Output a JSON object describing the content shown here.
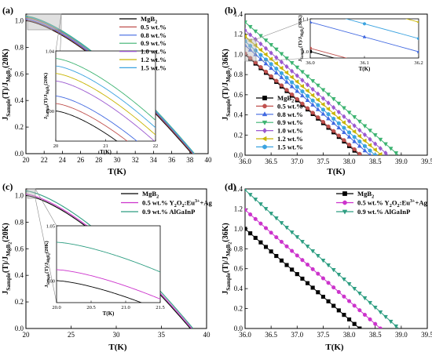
{
  "chart_data": [
    {
      "panel": "(a)",
      "type": "line",
      "xlabel": "T(K)",
      "ylabel": "J_Sample(T)/J_MgB2(20K)",
      "xlim": [
        20,
        40
      ],
      "ylim": [
        0,
        1.05
      ],
      "xticks": [
        20,
        22,
        24,
        26,
        28,
        30,
        32,
        34,
        36,
        38,
        40
      ],
      "yticks": [
        0.0,
        0.2,
        0.4,
        0.6,
        0.8,
        1.0
      ],
      "legend": "top-right",
      "series": [
        {
          "name": "MgB2",
          "color": "#000000",
          "Tc": 38.2,
          "y0": 1.0
        },
        {
          "name": "0.5 wt.%",
          "color": "#c0504d",
          "Tc": 38.3,
          "y0": 1.005
        },
        {
          "name": "0.8 wt.%",
          "color": "#4169e1",
          "Tc": 38.4,
          "y0": 1.01
        },
        {
          "name": "0.9 wt.%",
          "color": "#3cb371",
          "Tc": 38.5,
          "y0": 1.035
        },
        {
          "name": "1.0 wt.%",
          "color": "#9b59d0",
          "Tc": 38.45,
          "y0": 1.02
        },
        {
          "name": "1.2 wt.%",
          "color": "#c8b400",
          "Tc": 38.45,
          "y0": 1.025
        },
        {
          "name": "1.5 wt.%",
          "color": "#3ba3e0",
          "Tc": 38.45,
          "y0": 1.03
        }
      ],
      "inset": {
        "xlim": [
          20,
          22
        ],
        "ylim": [
          0.98,
          1.04
        ],
        "xticks": [
          20,
          21,
          22
        ],
        "yticks": [
          1.0,
          1.04
        ],
        "xlabel": "T(K)",
        "ylabel": "J_Sample(T)/J_MgB2(20K)"
      }
    },
    {
      "panel": "(b)",
      "type": "line",
      "xlabel": "T(K)",
      "ylabel": "J_Sample(T)/J_MgB2(36K)",
      "xlim": [
        36.0,
        39.5
      ],
      "ylim": [
        0.0,
        1.4
      ],
      "xticks": [
        36.0,
        36.5,
        37.0,
        37.5,
        38.0,
        38.5,
        39.0,
        39.5
      ],
      "yticks": [
        0.0,
        0.2,
        0.4,
        0.6,
        0.8,
        1.0,
        1.2,
        1.4
      ],
      "legend": "center-left",
      "series": [
        {
          "name": "MgB2",
          "color": "#000000",
          "marker": "square",
          "x": [
            36.0,
            38.2
          ],
          "y": [
            1.0,
            0.0
          ]
        },
        {
          "name": "0.5 wt.%",
          "color": "#c0504d",
          "marker": "circle",
          "x": [
            36.0,
            38.23
          ],
          "y": [
            1.01,
            0.0
          ]
        },
        {
          "name": "0.8 wt.%",
          "color": "#4169e1",
          "marker": "triangle-up",
          "x": [
            36.0,
            38.4
          ],
          "y": [
            1.09,
            0.0
          ]
        },
        {
          "name": "0.9 wt.%",
          "color": "#3cb371",
          "marker": "triangle-down",
          "x": [
            36.0,
            38.95
          ],
          "y": [
            1.32,
            0.0
          ]
        },
        {
          "name": "1.0 wt.%",
          "color": "#9b59d0",
          "marker": "diamond",
          "x": [
            36.0,
            38.75
          ],
          "y": [
            1.24,
            0.0
          ]
        },
        {
          "name": "1.2 wt.%",
          "color": "#c8b400",
          "marker": "triangle-left",
          "x": [
            36.0,
            38.62
          ],
          "y": [
            1.18,
            0.0
          ]
        },
        {
          "name": "1.5 wt.%",
          "color": "#3ba3e0",
          "marker": "hexagon",
          "x": [
            36.0,
            38.5
          ],
          "y": [
            1.13,
            0.0
          ]
        }
      ],
      "inset": {
        "xlim": [
          36.0,
          36.2
        ],
        "ylim": [
          0.98,
          1.1
        ],
        "xticks": [
          36.0,
          36.1,
          36.2
        ],
        "yticks": [
          1.0,
          1.1
        ],
        "xlabel": "T(K)",
        "ylabel": "J_Sample(T)/J_MgB2(36K)"
      }
    },
    {
      "panel": "(c)",
      "type": "line",
      "xlabel": "T(K)",
      "ylabel": "J_Sample(T)/J_MgB2(20K)",
      "xlim": [
        20,
        40
      ],
      "ylim": [
        0,
        1.05
      ],
      "xticks": [
        20,
        25,
        30,
        35,
        40
      ],
      "yticks": [
        0.0,
        0.2,
        0.4,
        0.6,
        0.8,
        1.0
      ],
      "legend": "top-right",
      "series": [
        {
          "name": "MgB2",
          "color": "#000000",
          "Tc": 38.2,
          "y0": 1.0
        },
        {
          "name": "0.5 wt.% Y2O2:Eu3++Ag",
          "color": "#cc33cc",
          "Tc": 38.35,
          "y0": 1.01
        },
        {
          "name": "0.9 wt.% AlGaInP",
          "color": "#2e9e82",
          "Tc": 38.5,
          "y0": 1.035
        }
      ],
      "inset": {
        "xlim": [
          20.0,
          21.5
        ],
        "ylim": [
          0.98,
          1.05
        ],
        "xticks": [
          20.0,
          20.5,
          21.0,
          21.5
        ],
        "yticks": [
          1.0,
          1.05
        ],
        "xlabel": "T(K)",
        "ylabel": "J_Sample(T)/J_MgB2(20K)"
      }
    },
    {
      "panel": "(d)",
      "type": "line",
      "xlabel": "T(K)",
      "ylabel": "J_Sample(T)/J_MgB2(36K)",
      "xlim": [
        36.0,
        39.5
      ],
      "ylim": [
        0.0,
        1.4
      ],
      "xticks": [
        36.0,
        36.5,
        37.0,
        37.5,
        38.0,
        38.5,
        39.0,
        39.5
      ],
      "yticks": [
        0.0,
        0.2,
        0.4,
        0.6,
        0.8,
        1.0,
        1.2,
        1.4
      ],
      "legend": "top-right",
      "series": [
        {
          "name": "MgB2",
          "color": "#000000",
          "marker": "square",
          "x": [
            36.0,
            38.2
          ],
          "y": [
            1.0,
            0.0
          ]
        },
        {
          "name": "0.5 wt.% Y2O2:Eu3++Ag",
          "color": "#cc33cc",
          "marker": "circle",
          "x": [
            36.0,
            38.6
          ],
          "y": [
            1.19,
            0.0
          ]
        },
        {
          "name": "0.9 wt.% AlGaInP",
          "color": "#2e9e82",
          "marker": "triangle-down",
          "x": [
            36.0,
            38.95
          ],
          "y": [
            1.39,
            0.0
          ]
        }
      ]
    }
  ]
}
